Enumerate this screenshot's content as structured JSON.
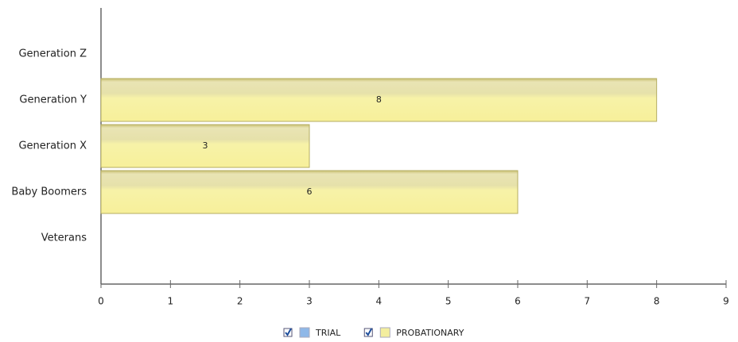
{
  "chart_data": {
    "type": "bar",
    "orientation": "horizontal",
    "categories": [
      "Generation Z",
      "Generation Y",
      "Generation X",
      "Baby Boomers",
      "Veterans"
    ],
    "series": [
      {
        "name": "TRIAL",
        "color": "#8fb8e8",
        "values": [
          null,
          null,
          null,
          null,
          null
        ]
      },
      {
        "name": "PROBATIONARY",
        "color": "#f3ee9e",
        "values": [
          null,
          8,
          3,
          6,
          null
        ]
      }
    ],
    "xlim": [
      0,
      9
    ],
    "xticks": [
      0,
      1,
      2,
      3,
      4,
      5,
      6,
      7,
      8,
      9
    ]
  }
}
